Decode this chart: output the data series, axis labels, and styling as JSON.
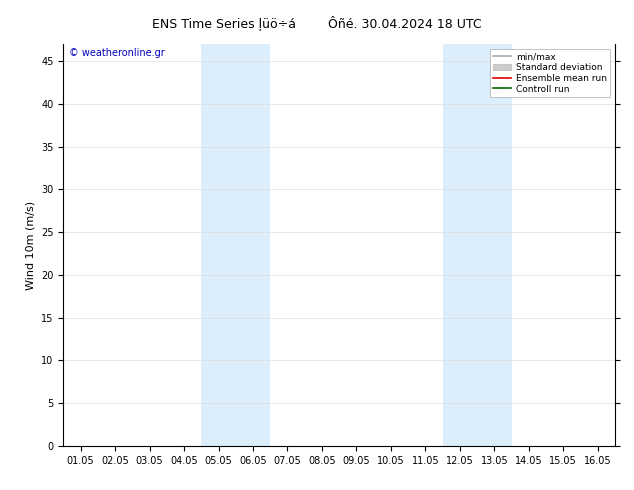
{
  "title": "ENS Time Series ļüö÷á",
  "subtitle": "Ôñé. 30.04.2024 18 UTC",
  "ylabel": "Wind 10m (m/s)",
  "watermark": "© weatheronline.gr",
  "xlim_dates": [
    "01.05",
    "02.05",
    "03.05",
    "04.05",
    "05.05",
    "06.05",
    "07.05",
    "08.05",
    "09.05",
    "10.05",
    "11.05",
    "12.05",
    "13.05",
    "14.05",
    "15.05",
    "16.05"
  ],
  "ylim": [
    0,
    47
  ],
  "yticks": [
    0,
    5,
    10,
    15,
    20,
    25,
    30,
    35,
    40,
    45
  ],
  "shaded_bands": [
    {
      "xstart": 3.5,
      "xend": 5.5,
      "color": "#dceefb"
    },
    {
      "xstart": 10.5,
      "xend": 12.5,
      "color": "#dceefb"
    }
  ],
  "legend_entries": [
    {
      "label": "min/max",
      "color": "#aaaaaa",
      "lw": 1.2,
      "type": "line"
    },
    {
      "label": "Standard deviation",
      "color": "#cccccc",
      "lw": 8,
      "type": "patch"
    },
    {
      "label": "Ensemble mean run",
      "color": "#dd0000",
      "lw": 1.2,
      "type": "line"
    },
    {
      "label": "Controll run",
      "color": "#006600",
      "lw": 1.2,
      "type": "line"
    }
  ],
  "bg_color": "#ffffff",
  "plot_bg_color": "#ffffff",
  "grid_color": "#dddddd",
  "title_fontsize": 9,
  "axis_fontsize": 7,
  "watermark_color": "#0000bb",
  "watermark_fontsize": 7
}
